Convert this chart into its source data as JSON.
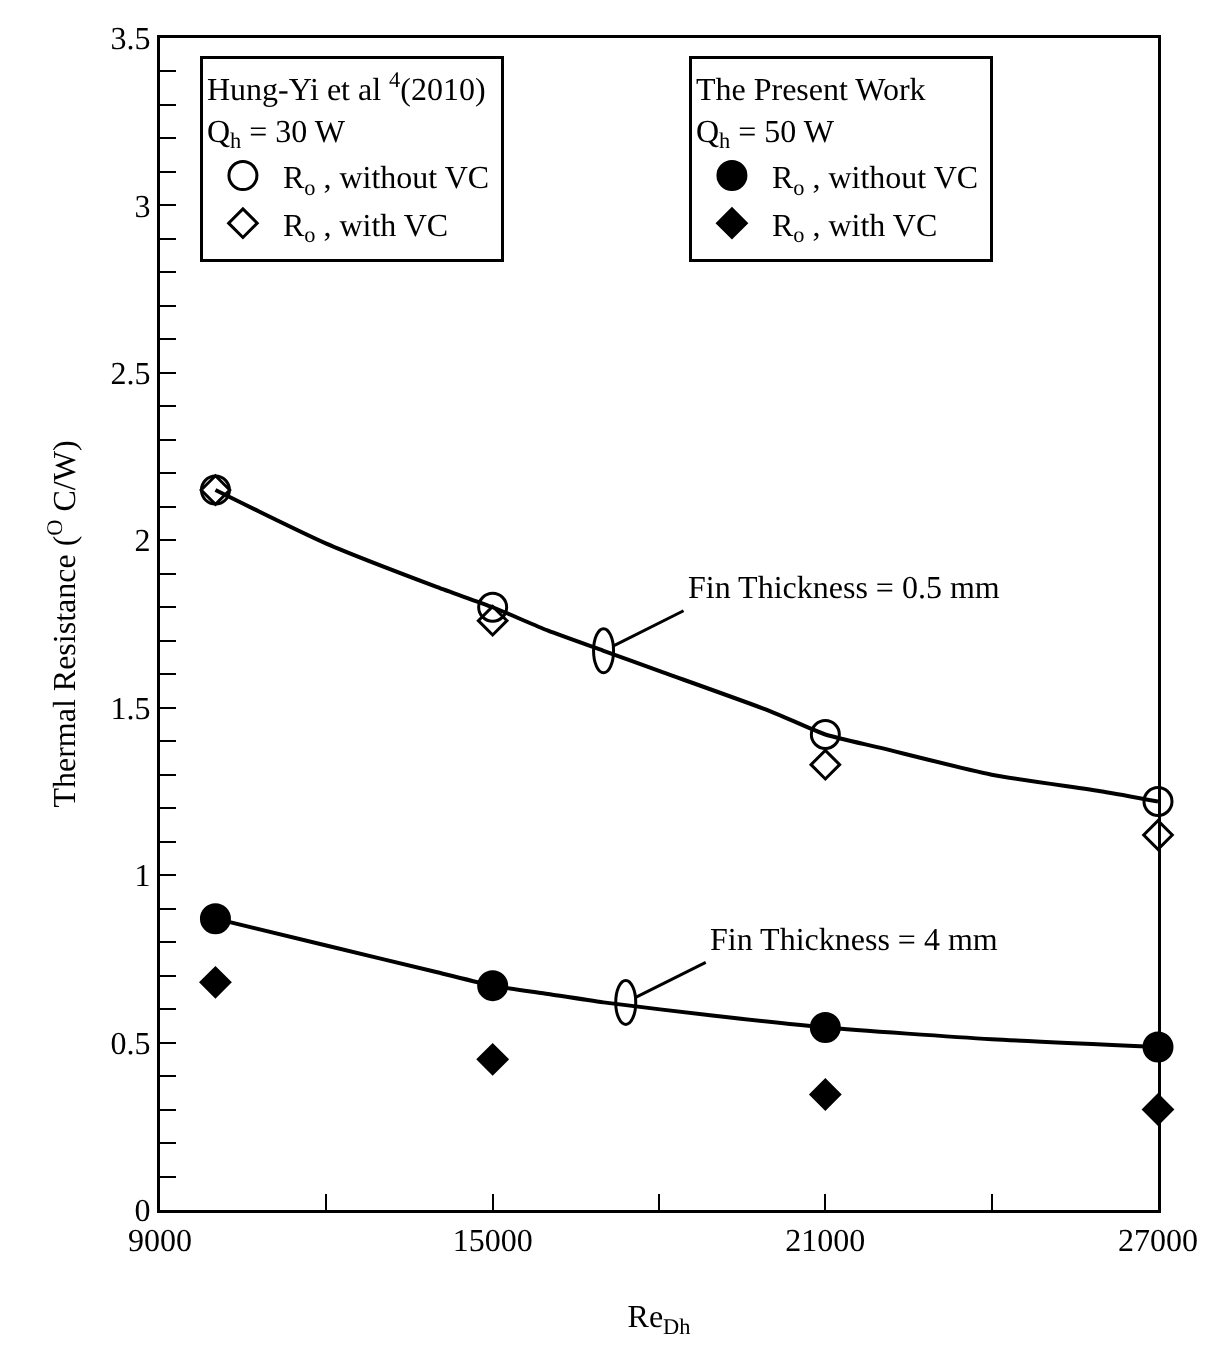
{
  "chart_data": {
    "type": "scatter",
    "xlabel": "Re$_{Dh}$",
    "ylabel": "Thermal Resistance ($^{O}$ C/W)",
    "legend_title": [
      "Hung-Yi et al $^{4}$(2010)\nQ$_{h}$ = 30 W",
      "The Present Work\nQ$_{h}$ = 50 W"
    ],
    "legend": "top",
    "x": [
      10000,
      15000,
      21000,
      27000
    ],
    "series": [
      {
        "name": "R$_{o}$ , without VC",
        "color": "#000000",
        "marker": "circle-open",
        "values": [
          2.15,
          1.8,
          1.42,
          1.22
        ]
      },
      {
        "name": "R$_{o}$ , with VC",
        "color": "#000000",
        "marker": "diamond-open",
        "values": [
          2.15,
          1.76,
          1.33,
          1.12
        ]
      },
      {
        "name": "R$_{o}$ , without VC",
        "color": "#000000",
        "marker": "circle",
        "values": [
          0.87,
          0.67,
          0.545,
          0.487
        ]
      },
      {
        "name": "R$_{o}$ , with VC",
        "color": "#000000",
        "marker": "diamond",
        "values": [
          0.68,
          0.45,
          0.345,
          0.3
        ]
      },
      {
        "type": "line",
        "color": "#000000",
        "marker": "none",
        "line_style": "solid",
        "x": [
          10000,
          12000,
          14000,
          15000,
          16000,
          17000,
          18000,
          20000,
          21000,
          22000,
          24000,
          26000,
          27000
        ],
        "values": [
          2.15,
          1.99,
          1.86,
          1.8,
          1.73,
          1.67,
          1.61,
          1.49,
          1.42,
          1.38,
          1.3,
          1.25,
          1.22
        ]
      },
      {
        "type": "line",
        "color": "#000000",
        "marker": "none",
        "line_style": "solid",
        "x": [
          10000,
          12000,
          14000,
          15000,
          16000,
          17000,
          19000,
          21000,
          24000,
          27000
        ],
        "values": [
          0.87,
          0.79,
          0.71,
          0.67,
          0.645,
          0.62,
          0.58,
          0.545,
          0.51,
          0.487
        ]
      }
    ],
    "annotations": [
      {
        "text": "Fin Thickness = 0.5 mm",
        "x": 17000,
        "y": 1.67
      },
      {
        "text": "Fin Thickness = 4 mm",
        "x": 17400,
        "y": 0.62
      }
    ],
    "xlim": [
      9000,
      27000
    ],
    "xticks": [
      9000,
      {
        "value": 12000,
        "label": null
      },
      15000,
      {
        "value": 18000,
        "label": null
      },
      21000,
      {
        "value": 24000,
        "label": null
      },
      27000
    ],
    "ylim": [
      0,
      3.5
    ],
    "yticks": [
      0,
      {
        "value": 0.1,
        "label": null
      },
      {
        "value": 0.2,
        "label": null
      },
      {
        "value": 0.3,
        "label": null
      },
      {
        "value": 0.4,
        "label": null
      },
      0.5,
      {
        "value": 0.6,
        "label": null
      },
      {
        "value": 0.7,
        "label": null
      },
      {
        "value": 0.8,
        "label": null
      },
      {
        "value": 0.9,
        "label": null
      },
      1,
      {
        "value": 1.1,
        "label": null
      },
      {
        "value": 1.2,
        "label": null
      },
      {
        "value": 1.3,
        "label": null
      },
      {
        "value": 1.4,
        "label": null
      },
      1.5,
      {
        "value": 1.6,
        "label": null
      },
      {
        "value": 1.7,
        "label": null
      },
      {
        "value": 1.8,
        "label": null
      },
      {
        "value": 1.9,
        "label": null
      },
      2,
      {
        "value": 2.1,
        "label": null
      },
      {
        "value": 2.2,
        "label": null
      },
      {
        "value": 2.3,
        "label": null
      },
      {
        "value": 2.4,
        "label": null
      },
      2.5,
      {
        "value": 2.6,
        "label": null
      },
      {
        "value": 2.7,
        "label": null
      },
      {
        "value": 2.8,
        "label": null
      },
      {
        "value": 2.9,
        "label": null
      },
      3,
      {
        "value": 3.1,
        "label": null
      },
      {
        "value": 3.2,
        "label": null
      },
      {
        "value": 3.3,
        "label": null
      },
      {
        "value": 3.4,
        "label": null
      },
      3.5
    ],
    "grid": false
  }
}
